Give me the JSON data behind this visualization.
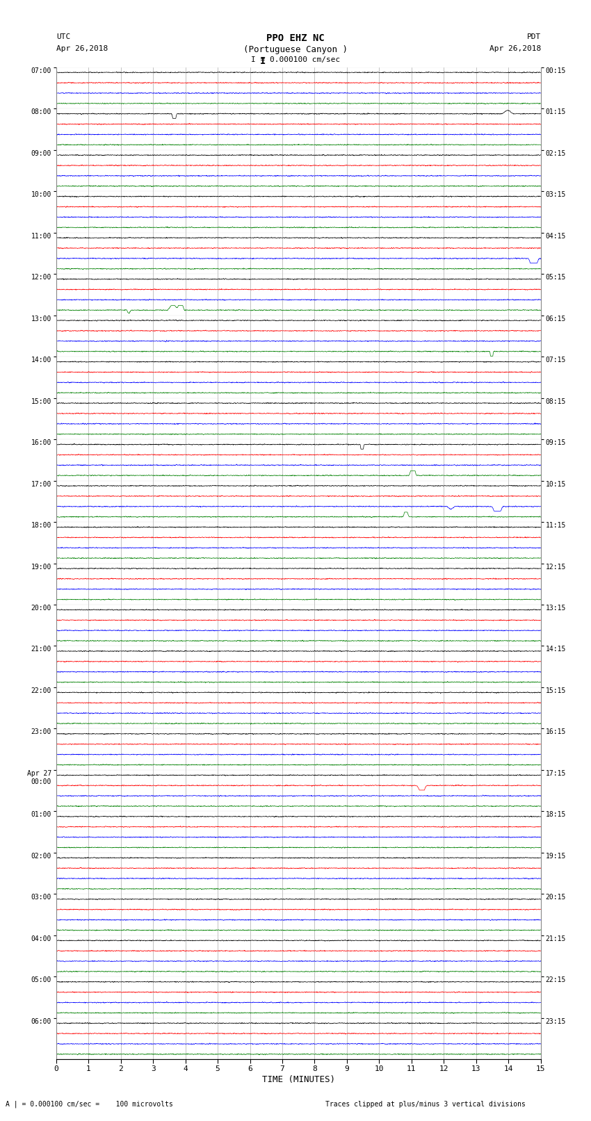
{
  "title_line1": "PPO EHZ NC",
  "title_line2": "(Portuguese Canyon )",
  "scale_label": "I = 0.000100 cm/sec",
  "left_header_line1": "UTC",
  "left_header_line2": "Apr 26,2018",
  "right_header_line1": "PDT",
  "right_header_line2": "Apr 26,2018",
  "bottom_label": "TIME (MINUTES)",
  "bottom_note": "A | = 0.000100 cm/sec =    100 microvolts",
  "bottom_note2": "Traces clipped at plus/minus 3 vertical divisions",
  "x_min": 0,
  "x_max": 15,
  "x_ticks": [
    0,
    1,
    2,
    3,
    4,
    5,
    6,
    7,
    8,
    9,
    10,
    11,
    12,
    13,
    14,
    15
  ],
  "colors": [
    "black",
    "red",
    "blue",
    "green"
  ],
  "left_times_labeled": [
    "07:00",
    "08:00",
    "09:00",
    "10:00",
    "11:00",
    "12:00",
    "13:00",
    "14:00",
    "15:00",
    "16:00",
    "17:00",
    "18:00",
    "19:00",
    "20:00",
    "21:00",
    "22:00",
    "23:00",
    "Apr 27\n00:00",
    "01:00",
    "02:00",
    "03:00",
    "04:00",
    "05:00",
    "06:00"
  ],
  "right_times_labeled": [
    "00:15",
    "01:15",
    "02:15",
    "03:15",
    "04:15",
    "05:15",
    "06:15",
    "07:15",
    "08:15",
    "09:15",
    "10:15",
    "11:15",
    "12:15",
    "13:15",
    "14:15",
    "15:15",
    "16:15",
    "17:15",
    "18:15",
    "19:15",
    "20:15",
    "21:15",
    "22:15",
    "23:15"
  ],
  "num_hours": 24,
  "traces_per_hour": 4,
  "background_color": "#ffffff",
  "noise_amplitude_base": 0.035,
  "seed": 42,
  "linewidth": 0.5,
  "vgrid_color": "#888888",
  "vgrid_lw": 0.5
}
